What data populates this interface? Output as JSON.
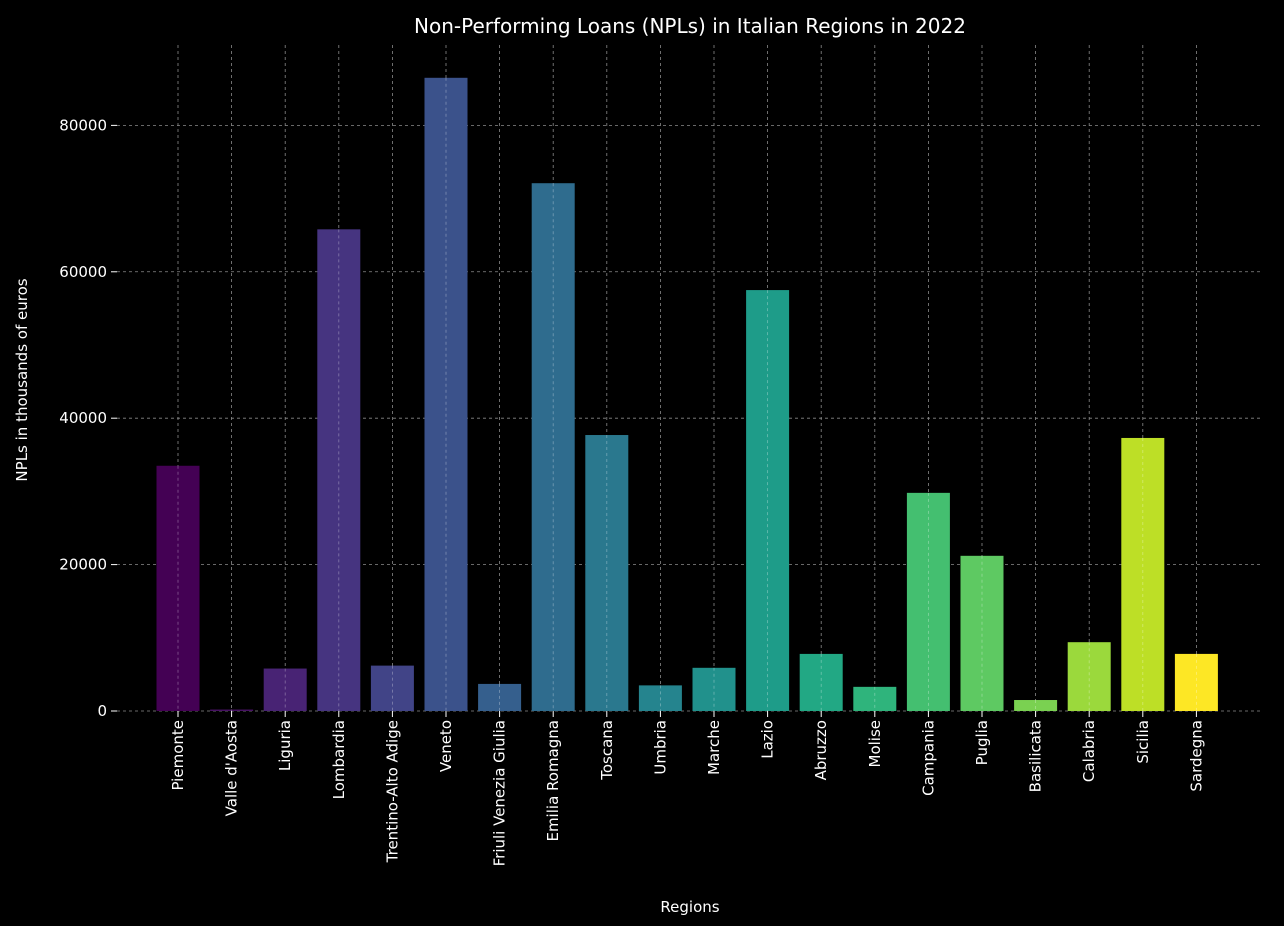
{
  "chart_data": {
    "type": "bar",
    "title": "Non-Performing Loans (NPLs) in Italian Regions in 2022",
    "xlabel": "Regions",
    "ylabel": "NPLs in thousands of euros",
    "categories": [
      "Piemonte",
      "Valle d'Aosta",
      "Liguria",
      "Lombardia",
      "Trentino-Alto Adige",
      "Veneto",
      "Friuli Venezia Giulia",
      "Emilia Romagna",
      "Toscana",
      "Umbria",
      "Marche",
      "Lazio",
      "Abruzzo",
      "Molise",
      "Campania",
      "Puglia",
      "Basilicata",
      "Calabria",
      "Sicilia",
      "Sardegna"
    ],
    "values": [
      33500,
      200,
      5800,
      65800,
      6200,
      86500,
      3700,
      72100,
      37700,
      3500,
      5900,
      57500,
      7800,
      3300,
      29800,
      21200,
      1500,
      9400,
      37300,
      7800
    ],
    "ylim": [
      0,
      90980
    ],
    "yticks": [
      0,
      20000,
      40000,
      60000,
      80000
    ],
    "grid": true,
    "colors": [
      "#440154",
      "#471263",
      "#482374",
      "#463480",
      "#414487",
      "#3b528b",
      "#355f8d",
      "#2f6c8e",
      "#2a788e",
      "#25848e",
      "#21918c",
      "#1e9c89",
      "#22a884",
      "#2fb47c",
      "#44bf70",
      "#5ec962",
      "#7ad151",
      "#9bd93c",
      "#bddf26",
      "#fde725"
    ],
    "background": "#000000",
    "text_color": "#ffffff"
  }
}
